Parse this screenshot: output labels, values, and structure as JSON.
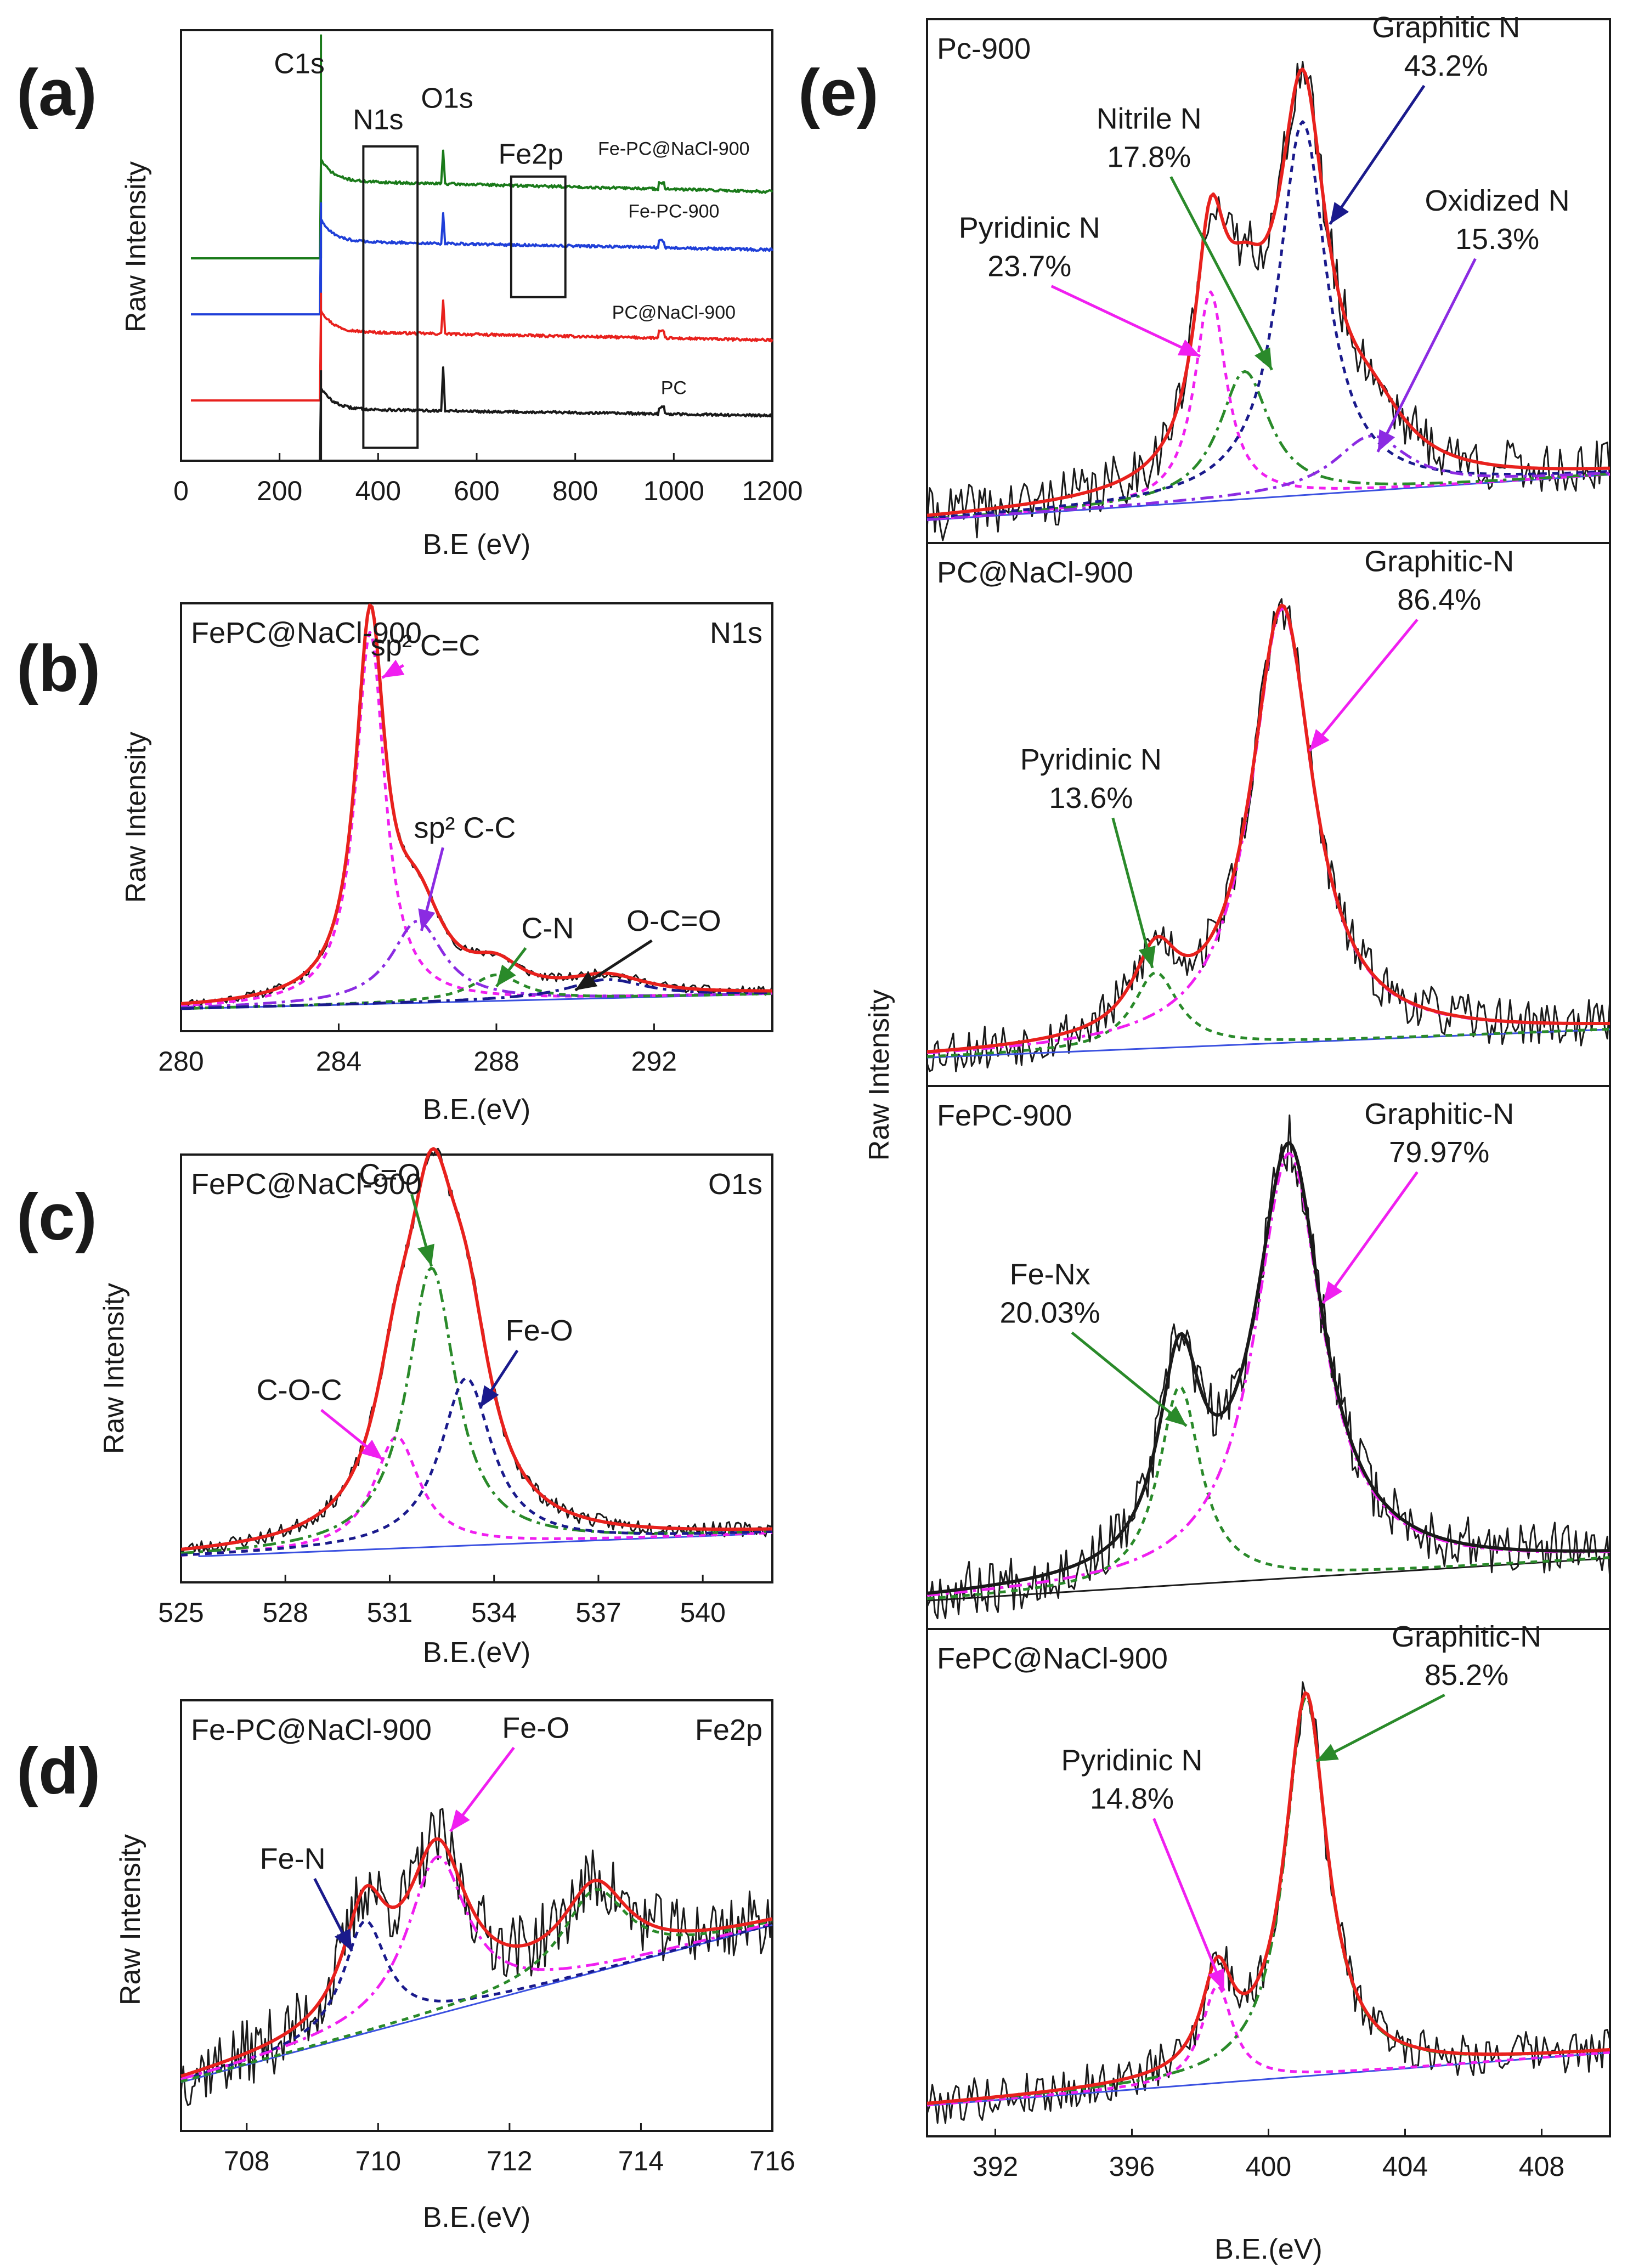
{
  "colors": {
    "black": "#1a1a1a",
    "red": "#e8211d",
    "blue": "#1f3fd8",
    "green": "#1a7a1a",
    "navy": "#1a1a8c",
    "magenta": "#f01ff0",
    "violet": "#8b2be2",
    "darkgreen": "#2a8a2a",
    "baseline": "#3a50e0"
  },
  "chart_data": [
    {
      "id": "a",
      "type": "line",
      "panel_label": "(a)",
      "xlabel": "B.E (eV)",
      "ylabel": "Raw Intensity",
      "xlim": [
        0,
        1200
      ],
      "ylim": [
        0,
        10
      ],
      "xticks": [
        0,
        200,
        400,
        600,
        800,
        1000,
        1200
      ],
      "boxes": [
        {
          "name": "N1s",
          "x0": 370,
          "x1": 480,
          "y0": 0.3,
          "y1": 7.3
        },
        {
          "name": "Fe2p",
          "x0": 670,
          "x1": 780,
          "y0": 3.8,
          "y1": 6.6
        }
      ],
      "annotations": [
        {
          "text": "C1s",
          "x": 240,
          "y": 9.0
        },
        {
          "text": "N1s",
          "x": 400,
          "y": 7.7
        },
        {
          "text": "O1s",
          "x": 540,
          "y": 8.2
        },
        {
          "text": "Fe2p",
          "x": 710,
          "y": 6.9
        }
      ],
      "series": [
        {
          "name": "Fe-PC@NaCl-900",
          "color": "#1a7a1a",
          "base": 4.7,
          "jump": 1.8,
          "edge": 284,
          "o1s": 0.8,
          "tail": -0.25,
          "label_x": 1000,
          "label_y": 7.1
        },
        {
          "name": "Fe-PC-900",
          "color": "#1f3fd8",
          "base": 3.4,
          "jump": 1.7,
          "edge": 284,
          "o1s": 0.7,
          "tail": -0.2,
          "label_x": 1000,
          "label_y": 5.65
        },
        {
          "name": "PC@NaCl-900",
          "color": "#e8211d",
          "base": 1.4,
          "jump": 1.6,
          "edge": 284,
          "o1s": 0.8,
          "tail": -0.2,
          "label_x": 1000,
          "label_y": 3.3
        },
        {
          "name": "PC",
          "color": "#1a1a1a",
          "base": 0.0,
          "jump": 1.2,
          "edge": 284,
          "o1s": 1.0,
          "tail": -0.15,
          "label_x": 1000,
          "label_y": 1.55
        }
      ]
    },
    {
      "id": "b",
      "type": "line",
      "panel_label": "(b)",
      "title_left": "FePC@NaCl-900",
      "title_right": "N1s",
      "xlabel": "B.E.(eV)",
      "ylabel": "Raw Intensity",
      "xlim": [
        280,
        295
      ],
      "ylim": [
        -0.05,
        1.1
      ],
      "xticks": [
        280,
        284,
        288,
        292
      ],
      "baseline": {
        "x": [
          280,
          295
        ],
        "y": [
          0.01,
          0.05
        ],
        "color": "#3a50e0"
      },
      "envelope_color": "#e8211d",
      "raw_color": "#1a1a1a",
      "peaks": [
        {
          "name": "sp² C=C",
          "center": 284.8,
          "amp": 1.0,
          "width": 0.45,
          "color": "#f01ff0"
        },
        {
          "name": "sp² C-C",
          "center": 286.0,
          "amp": 0.22,
          "width": 0.8,
          "color": "#8b2be2"
        },
        {
          "name": "C-N",
          "center": 288.0,
          "amp": 0.07,
          "width": 0.8,
          "color": "#2a8a2a"
        },
        {
          "name": "O-C=O",
          "center": 290.8,
          "amp": 0.05,
          "width": 1.2,
          "color": "#1a1a8c"
        }
      ],
      "annotations": [
        {
          "text": "sp² C=C",
          "tx": 286.2,
          "ty": 0.96,
          "ax": 285.1,
          "ay": 0.9,
          "color": "#f01ff0"
        },
        {
          "text": "sp² C-C",
          "tx": 287.2,
          "ty": 0.47,
          "ax": 286.1,
          "ay": 0.22,
          "color": "#8b2be2"
        },
        {
          "text": "C-N",
          "tx": 289.3,
          "ty": 0.2,
          "ax": 288.0,
          "ay": 0.07,
          "color": "#2a8a2a"
        },
        {
          "text": "O-C=O",
          "tx": 292.5,
          "ty": 0.22,
          "ax": 290.0,
          "ay": 0.06,
          "color": "#1a1a1a"
        }
      ]
    },
    {
      "id": "c",
      "type": "line",
      "panel_label": "(c)",
      "title_left": "FePC@NaCl-900",
      "title_right": "O1s",
      "xlabel": "B.E.(eV)",
      "ylabel": "Raw Intensity",
      "xlim": [
        525,
        542
      ],
      "ylim": [
        -0.05,
        1.1
      ],
      "xticks": [
        525,
        528,
        531,
        534,
        537,
        540
      ],
      "baseline": {
        "x": [
          525.5,
          541.5
        ],
        "y": [
          0.02,
          0.08
        ],
        "color": "#3a50e0"
      },
      "envelope_color": "#e8211d",
      "raw_color": "#1a1a1a",
      "peaks": [
        {
          "name": "C-O-C",
          "center": 531.2,
          "amp": 0.3,
          "width": 0.8,
          "color": "#f01ff0"
        },
        {
          "name": "C=O",
          "center": 532.2,
          "amp": 0.75,
          "width": 0.85,
          "color": "#2a8a2a"
        },
        {
          "name": "Fe-O",
          "center": 533.2,
          "amp": 0.45,
          "width": 0.9,
          "color": "#1a1a8c"
        }
      ],
      "annotations": [
        {
          "text": "C=O",
          "tx": 531.0,
          "ty": 1.02,
          "ax": 532.2,
          "ay": 0.8,
          "color": "#2a8a2a"
        },
        {
          "text": "Fe-O",
          "tx": 535.3,
          "ty": 0.6,
          "ax": 533.6,
          "ay": 0.42,
          "color": "#1a1a8c"
        },
        {
          "text": "C-O-C",
          "tx": 528.4,
          "ty": 0.44,
          "ax": 530.8,
          "ay": 0.28,
          "color": "#f01ff0"
        }
      ]
    },
    {
      "id": "d",
      "type": "line",
      "panel_label": "(d)",
      "title_left": "Fe-PC@NaCl-900",
      "title_right": "Fe2p",
      "xlabel": "B.E.(eV)",
      "ylabel": "Raw Intensity",
      "xlim": [
        707,
        716
      ],
      "ylim": [
        -0.05,
        1.1
      ],
      "xticks": [
        708,
        710,
        712,
        714,
        716
      ],
      "baseline": {
        "x": [
          707,
          716
        ],
        "y": [
          0.08,
          0.5
        ],
        "color": "#3a50e0"
      },
      "envelope_color": "#e8211d",
      "raw_color": "#1a1a1a",
      "peaks": [
        {
          "name": "Fe-N",
          "center": 709.8,
          "amp": 0.3,
          "width": 0.4,
          "color": "#1a1a8c"
        },
        {
          "name": "Fe-O",
          "center": 710.9,
          "amp": 0.42,
          "width": 0.55,
          "color": "#f01ff0"
        },
        {
          "name": "Fe-O (2)",
          "center": 713.3,
          "amp": 0.22,
          "width": 0.6,
          "color": "#2a8a2a"
        }
      ],
      "annotations": [
        {
          "text": "Fe-O",
          "tx": 712.4,
          "ty": 1.0,
          "ax": 711.1,
          "ay": 0.75,
          "color": "#f01ff0"
        },
        {
          "text": "Fe-N",
          "tx": 708.7,
          "ty": 0.65,
          "ax": 709.6,
          "ay": 0.43,
          "color": "#1a1a8c"
        }
      ]
    },
    {
      "id": "e1",
      "type": "line",
      "panel_label": "(e)",
      "title_left": "Pc-900",
      "xlabel": "",
      "ylabel": "",
      "xlim": [
        390,
        410
      ],
      "ylim": [
        -0.05,
        1.1
      ],
      "xticks": [],
      "baseline": {
        "x": [
          390,
          410
        ],
        "y": [
          0.0,
          0.1
        ],
        "color": "#3a50e0"
      },
      "envelope_color": "#e8211d",
      "raw_color": "#1a1a1a",
      "peaks": [
        {
          "name": "Pyridinic N",
          "center": 398.3,
          "amp": 0.46,
          "width": 0.55,
          "color": "#f01ff0"
        },
        {
          "name": "Nitrile N",
          "center": 399.3,
          "amp": 0.28,
          "width": 0.9,
          "color": "#2a8a2a"
        },
        {
          "name": "Graphitic N",
          "center": 401.0,
          "amp": 0.82,
          "width": 0.85,
          "color": "#1a1a8c"
        },
        {
          "name": "Oxidized N",
          "center": 403.0,
          "amp": 0.12,
          "width": 1.3,
          "color": "#8b2be2"
        }
      ],
      "annotations": [
        {
          "text": "Graphitic N",
          "text2": "43.2%",
          "tx": 405.2,
          "ty": 1.06,
          "ax": 401.8,
          "ay": 0.65,
          "color": "#1a1a8c"
        },
        {
          "text": "Nitrile N",
          "text2": "17.8%",
          "tx": 396.5,
          "ty": 0.86,
          "ax": 400.1,
          "ay": 0.33,
          "color": "#2a8a2a"
        },
        {
          "text": "Oxidized N",
          "text2": "15.3%",
          "tx": 406.7,
          "ty": 0.68,
          "ax": 403.2,
          "ay": 0.15,
          "color": "#8b2be2"
        },
        {
          "text": "Pyridinic N",
          "text2": "23.7%",
          "tx": 393.0,
          "ty": 0.62,
          "ax": 398.0,
          "ay": 0.36,
          "color": "#f01ff0"
        }
      ]
    },
    {
      "id": "e2",
      "type": "line",
      "title_left": "PC@NaCl-900",
      "xlim": [
        390,
        410
      ],
      "ylim": [
        -0.05,
        1.1
      ],
      "xticks": [],
      "baseline": {
        "x": [
          390,
          410
        ],
        "y": [
          0.01,
          0.07
        ],
        "color": "#3a50e0"
      },
      "envelope_color": "#e8211d",
      "raw_color": "#1a1a1a",
      "peaks": [
        {
          "name": "Pyridinic N",
          "center": 396.7,
          "amp": 0.16,
          "width": 0.8,
          "color": "#2a8a2a"
        },
        {
          "name": "Graphitic-N",
          "center": 400.4,
          "amp": 0.92,
          "width": 1.1,
          "color": "#f01ff0"
        }
      ],
      "annotations": [
        {
          "text": "Graphitic-N",
          "text2": "86.4%",
          "tx": 405.0,
          "ty": 1.04,
          "ax": 401.2,
          "ay": 0.66,
          "color": "#f01ff0"
        },
        {
          "text": "Pyridinic N",
          "text2": "13.6%",
          "tx": 394.8,
          "ty": 0.62,
          "ax": 396.6,
          "ay": 0.2,
          "color": "#2a8a2a"
        }
      ]
    },
    {
      "id": "e3",
      "type": "line",
      "title_left": "FePC-900",
      "xlim": [
        390,
        410
      ],
      "ylim": [
        -0.05,
        1.1
      ],
      "xticks": [],
      "baseline": {
        "x": [
          390,
          410
        ],
        "y": [
          0.01,
          0.1
        ],
        "color": "#1a1a1a"
      },
      "envelope_color": "#1a1a1a",
      "raw_color": "#1a1a1a",
      "peaks": [
        {
          "name": "Fe-Nx",
          "center": 397.4,
          "amp": 0.42,
          "width": 0.75,
          "color": "#2a8a2a"
        },
        {
          "name": "Graphitic-N",
          "center": 400.6,
          "amp": 0.9,
          "width": 1.2,
          "color": "#f01ff0"
        }
      ],
      "annotations": [
        {
          "text": "Graphitic-N",
          "text2": "79.97%",
          "tx": 405.0,
          "ty": 1.02,
          "ax": 401.6,
          "ay": 0.64,
          "color": "#f01ff0"
        },
        {
          "text": "Fe-Nx",
          "text2": "20.03%",
          "tx": 393.6,
          "ty": 0.68,
          "ax": 397.6,
          "ay": 0.38,
          "color": "#2a8a2a"
        }
      ]
    },
    {
      "id": "e4",
      "type": "line",
      "title_left": "FePC@NaCl-900",
      "xlabel": "B.E.(eV)",
      "ylabel": "Raw Intensity",
      "xlim": [
        390,
        410
      ],
      "ylim": [
        -0.05,
        1.1
      ],
      "xticks": [
        392,
        396,
        400,
        404,
        408
      ],
      "baseline": {
        "x": [
          390,
          410
        ],
        "y": [
          0.02,
          0.14
        ],
        "color": "#3a50e0"
      },
      "envelope_color": "#e8211d",
      "raw_color": "#1a1a1a",
      "peaks": [
        {
          "name": "Pyridinic N",
          "center": 398.5,
          "amp": 0.22,
          "width": 0.55,
          "color": "#f01ff0"
        },
        {
          "name": "Graphitic-N",
          "center": 401.1,
          "amp": 0.86,
          "width": 0.75,
          "color": "#2a8a2a"
        }
      ],
      "annotations": [
        {
          "text": "Graphitic-N",
          "text2": "85.2%",
          "tx": 405.8,
          "ty": 1.06,
          "ax": 401.4,
          "ay": 0.8,
          "color": "#2a8a2a"
        },
        {
          "text": "Pyridinic N",
          "text2": "14.8%",
          "tx": 396.0,
          "ty": 0.78,
          "ax": 398.7,
          "ay": 0.28,
          "color": "#f01ff0"
        }
      ]
    }
  ]
}
